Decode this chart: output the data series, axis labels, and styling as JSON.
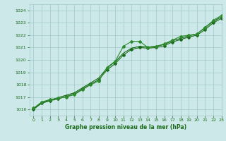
{
  "xlabel": "Graphe pression niveau de la mer (hPa)",
  "ylim": [
    1015.5,
    1024.5
  ],
  "xlim": [
    -0.5,
    23
  ],
  "yticks": [
    1016,
    1017,
    1018,
    1019,
    1020,
    1021,
    1022,
    1023,
    1024
  ],
  "xticks": [
    0,
    1,
    2,
    3,
    4,
    5,
    6,
    7,
    8,
    9,
    10,
    11,
    12,
    13,
    14,
    15,
    16,
    17,
    18,
    19,
    20,
    21,
    22,
    23
  ],
  "bg_color": "#cce8e8",
  "grid_color": "#a0c8c8",
  "line_color": "#1a6b1a",
  "line_color2": "#2d8b2d",
  "series1": [
    1016.1,
    1016.6,
    1016.8,
    1016.9,
    1017.0,
    1017.2,
    1017.6,
    1018.0,
    1018.3,
    1019.4,
    1019.9,
    1021.1,
    1021.5,
    1021.5,
    1021.0,
    1021.1,
    1021.3,
    1021.6,
    1021.9,
    1022.0,
    1022.1,
    1022.6,
    1023.2,
    1023.6
  ],
  "series2": [
    1016.0,
    1016.5,
    1016.7,
    1016.85,
    1017.05,
    1017.25,
    1017.65,
    1018.05,
    1018.4,
    1019.2,
    1019.7,
    1020.4,
    1020.85,
    1021.0,
    1020.95,
    1021.0,
    1021.15,
    1021.45,
    1021.65,
    1021.85,
    1022.0,
    1022.45,
    1023.0,
    1023.35
  ],
  "series3": [
    1016.05,
    1016.55,
    1016.75,
    1016.95,
    1017.15,
    1017.35,
    1017.75,
    1018.15,
    1018.55,
    1019.35,
    1019.85,
    1020.55,
    1020.95,
    1021.1,
    1021.05,
    1021.1,
    1021.25,
    1021.55,
    1021.75,
    1021.95,
    1022.1,
    1022.6,
    1023.1,
    1023.45
  ],
  "series4": [
    1016.05,
    1016.55,
    1016.75,
    1016.95,
    1017.15,
    1017.35,
    1017.75,
    1018.15,
    1018.55,
    1019.35,
    1019.85,
    1020.55,
    1020.95,
    1021.1,
    1021.05,
    1021.1,
    1021.25,
    1021.55,
    1021.75,
    1021.95,
    1022.1,
    1022.65,
    1023.15,
    1023.5
  ],
  "markersize": 2.0,
  "linewidth": 0.8
}
